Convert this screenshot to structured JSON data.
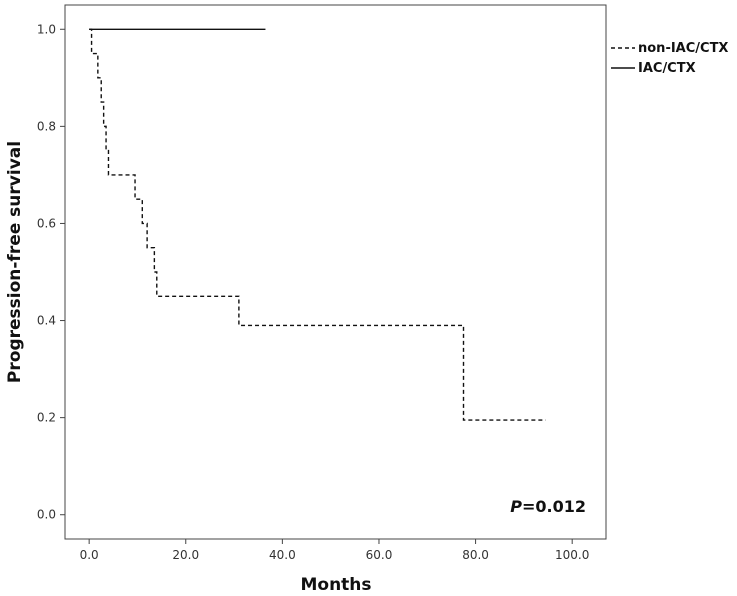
{
  "chart_data": {
    "type": "line",
    "title": "",
    "xlabel": "Months",
    "ylabel": "Progression-free survival",
    "xlim": [
      -5,
      107
    ],
    "ylim": [
      -0.05,
      1.05
    ],
    "x_ticks": [
      0,
      20,
      40,
      60,
      80,
      100
    ],
    "x_tick_labels": [
      "0.0",
      "20.0",
      "40.0",
      "60.0",
      "80.0",
      "100.0"
    ],
    "y_ticks": [
      0,
      0.2,
      0.4,
      0.6,
      0.8,
      1.0
    ],
    "y_tick_labels": [
      "0.0",
      "0.2",
      "0.4",
      "0.6",
      "0.8",
      "1.0"
    ],
    "grid": false,
    "legend_position": "right-top outside",
    "annotation": {
      "italic": "P",
      "text": "=0.012"
    },
    "series": [
      {
        "name": "non-IAC/CTX",
        "style": "dashed",
        "steps": [
          [
            0,
            1.0
          ],
          [
            0.5,
            0.95
          ],
          [
            1.8,
            0.9
          ],
          [
            2.5,
            0.85
          ],
          [
            3.0,
            0.8
          ],
          [
            3.5,
            0.75
          ],
          [
            4.0,
            0.7
          ],
          [
            9.5,
            0.65
          ],
          [
            11.0,
            0.6
          ],
          [
            12.0,
            0.55
          ],
          [
            13.5,
            0.5
          ],
          [
            14.0,
            0.45
          ],
          [
            31.0,
            0.39
          ],
          [
            77.5,
            0.195
          ]
        ],
        "end": 94.5
      },
      {
        "name": "IAC/CTX",
        "style": "solid",
        "steps": [
          [
            0,
            1.0
          ]
        ],
        "end": 36.5
      }
    ]
  }
}
